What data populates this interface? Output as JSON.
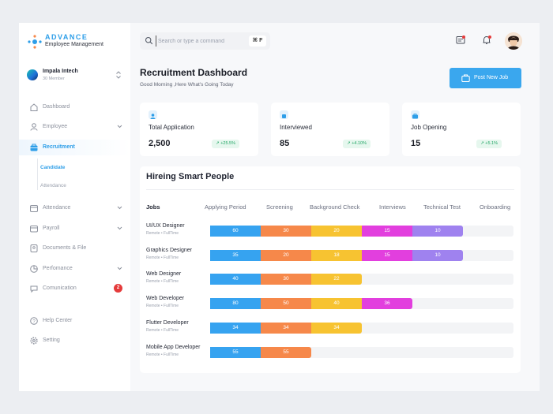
{
  "brand": {
    "name": "ADVANCE",
    "subtitle": "Employee Management"
  },
  "company": {
    "name": "Impala Intech",
    "members": "30 Member"
  },
  "sidebar": {
    "items": [
      {
        "label": "Dashboard",
        "icon": "home-icon"
      },
      {
        "label": "Employee",
        "icon": "user-icon"
      },
      {
        "label": "Recruitment",
        "icon": "briefcase-icon"
      },
      {
        "label": "Attendance",
        "icon": "calendar-icon"
      },
      {
        "label": "Payroll",
        "icon": "wallet-icon"
      },
      {
        "label": "Documents & File",
        "icon": "document-icon"
      },
      {
        "label": "Perfomance",
        "icon": "chart-icon"
      },
      {
        "label": "Comunication",
        "icon": "chat-icon",
        "badge": "2"
      }
    ],
    "sub_items": [
      {
        "label": "Candidate"
      },
      {
        "label": "Attendance"
      }
    ],
    "footer": [
      {
        "label": "Help Center",
        "icon": "help-icon"
      },
      {
        "label": "Setting",
        "icon": "gear-icon"
      }
    ]
  },
  "search": {
    "placeholder": "Search or type a command",
    "shortcut": "⌘ F"
  },
  "header": {
    "title": "Recruitment Dashboard",
    "greeting": "Good Morning ,Here What's Going Today",
    "post_button": "Post New Job"
  },
  "stats": [
    {
      "label": "Total Application",
      "value": "2,500",
      "trend": "+25.5%"
    },
    {
      "label": "Interviewed",
      "value": "85",
      "trend": "+4.10%"
    },
    {
      "label": "Job Opening",
      "value": "15",
      "trend": "+5.1%"
    }
  ],
  "hiring": {
    "title": "Hireing Smart People",
    "columns": [
      "Jobs",
      "Applying Period",
      "Screening",
      "Background Check",
      "Interviews",
      "Technical Test",
      "Onboarding"
    ],
    "stage_colors": [
      "#36a3f0",
      "#f6884a",
      "#f7c331",
      "#e23fde",
      "#9f82ef"
    ],
    "rows": [
      {
        "job": "UI/UX Designer",
        "type": "Remote • FullTime",
        "values": [
          "60",
          "30",
          "20",
          "15",
          "10"
        ]
      },
      {
        "job": "Graphics Designer",
        "type": "Remote • FullTime",
        "values": [
          "35",
          "20",
          "18",
          "15",
          "10"
        ]
      },
      {
        "job": "Web Designer",
        "type": "Remote • FullTime",
        "values": [
          "40",
          "30",
          "22"
        ]
      },
      {
        "job": "Web Developer",
        "type": "Remote • FullTime",
        "values": [
          "80",
          "50",
          "40",
          "36"
        ]
      },
      {
        "job": "Flutter Developer",
        "type": "Remote • FullTime",
        "values": [
          "34",
          "34",
          "34"
        ]
      },
      {
        "job": "Mobile App Developer",
        "type": "Remote • FullTime",
        "values": [
          "55",
          "55"
        ]
      }
    ]
  }
}
